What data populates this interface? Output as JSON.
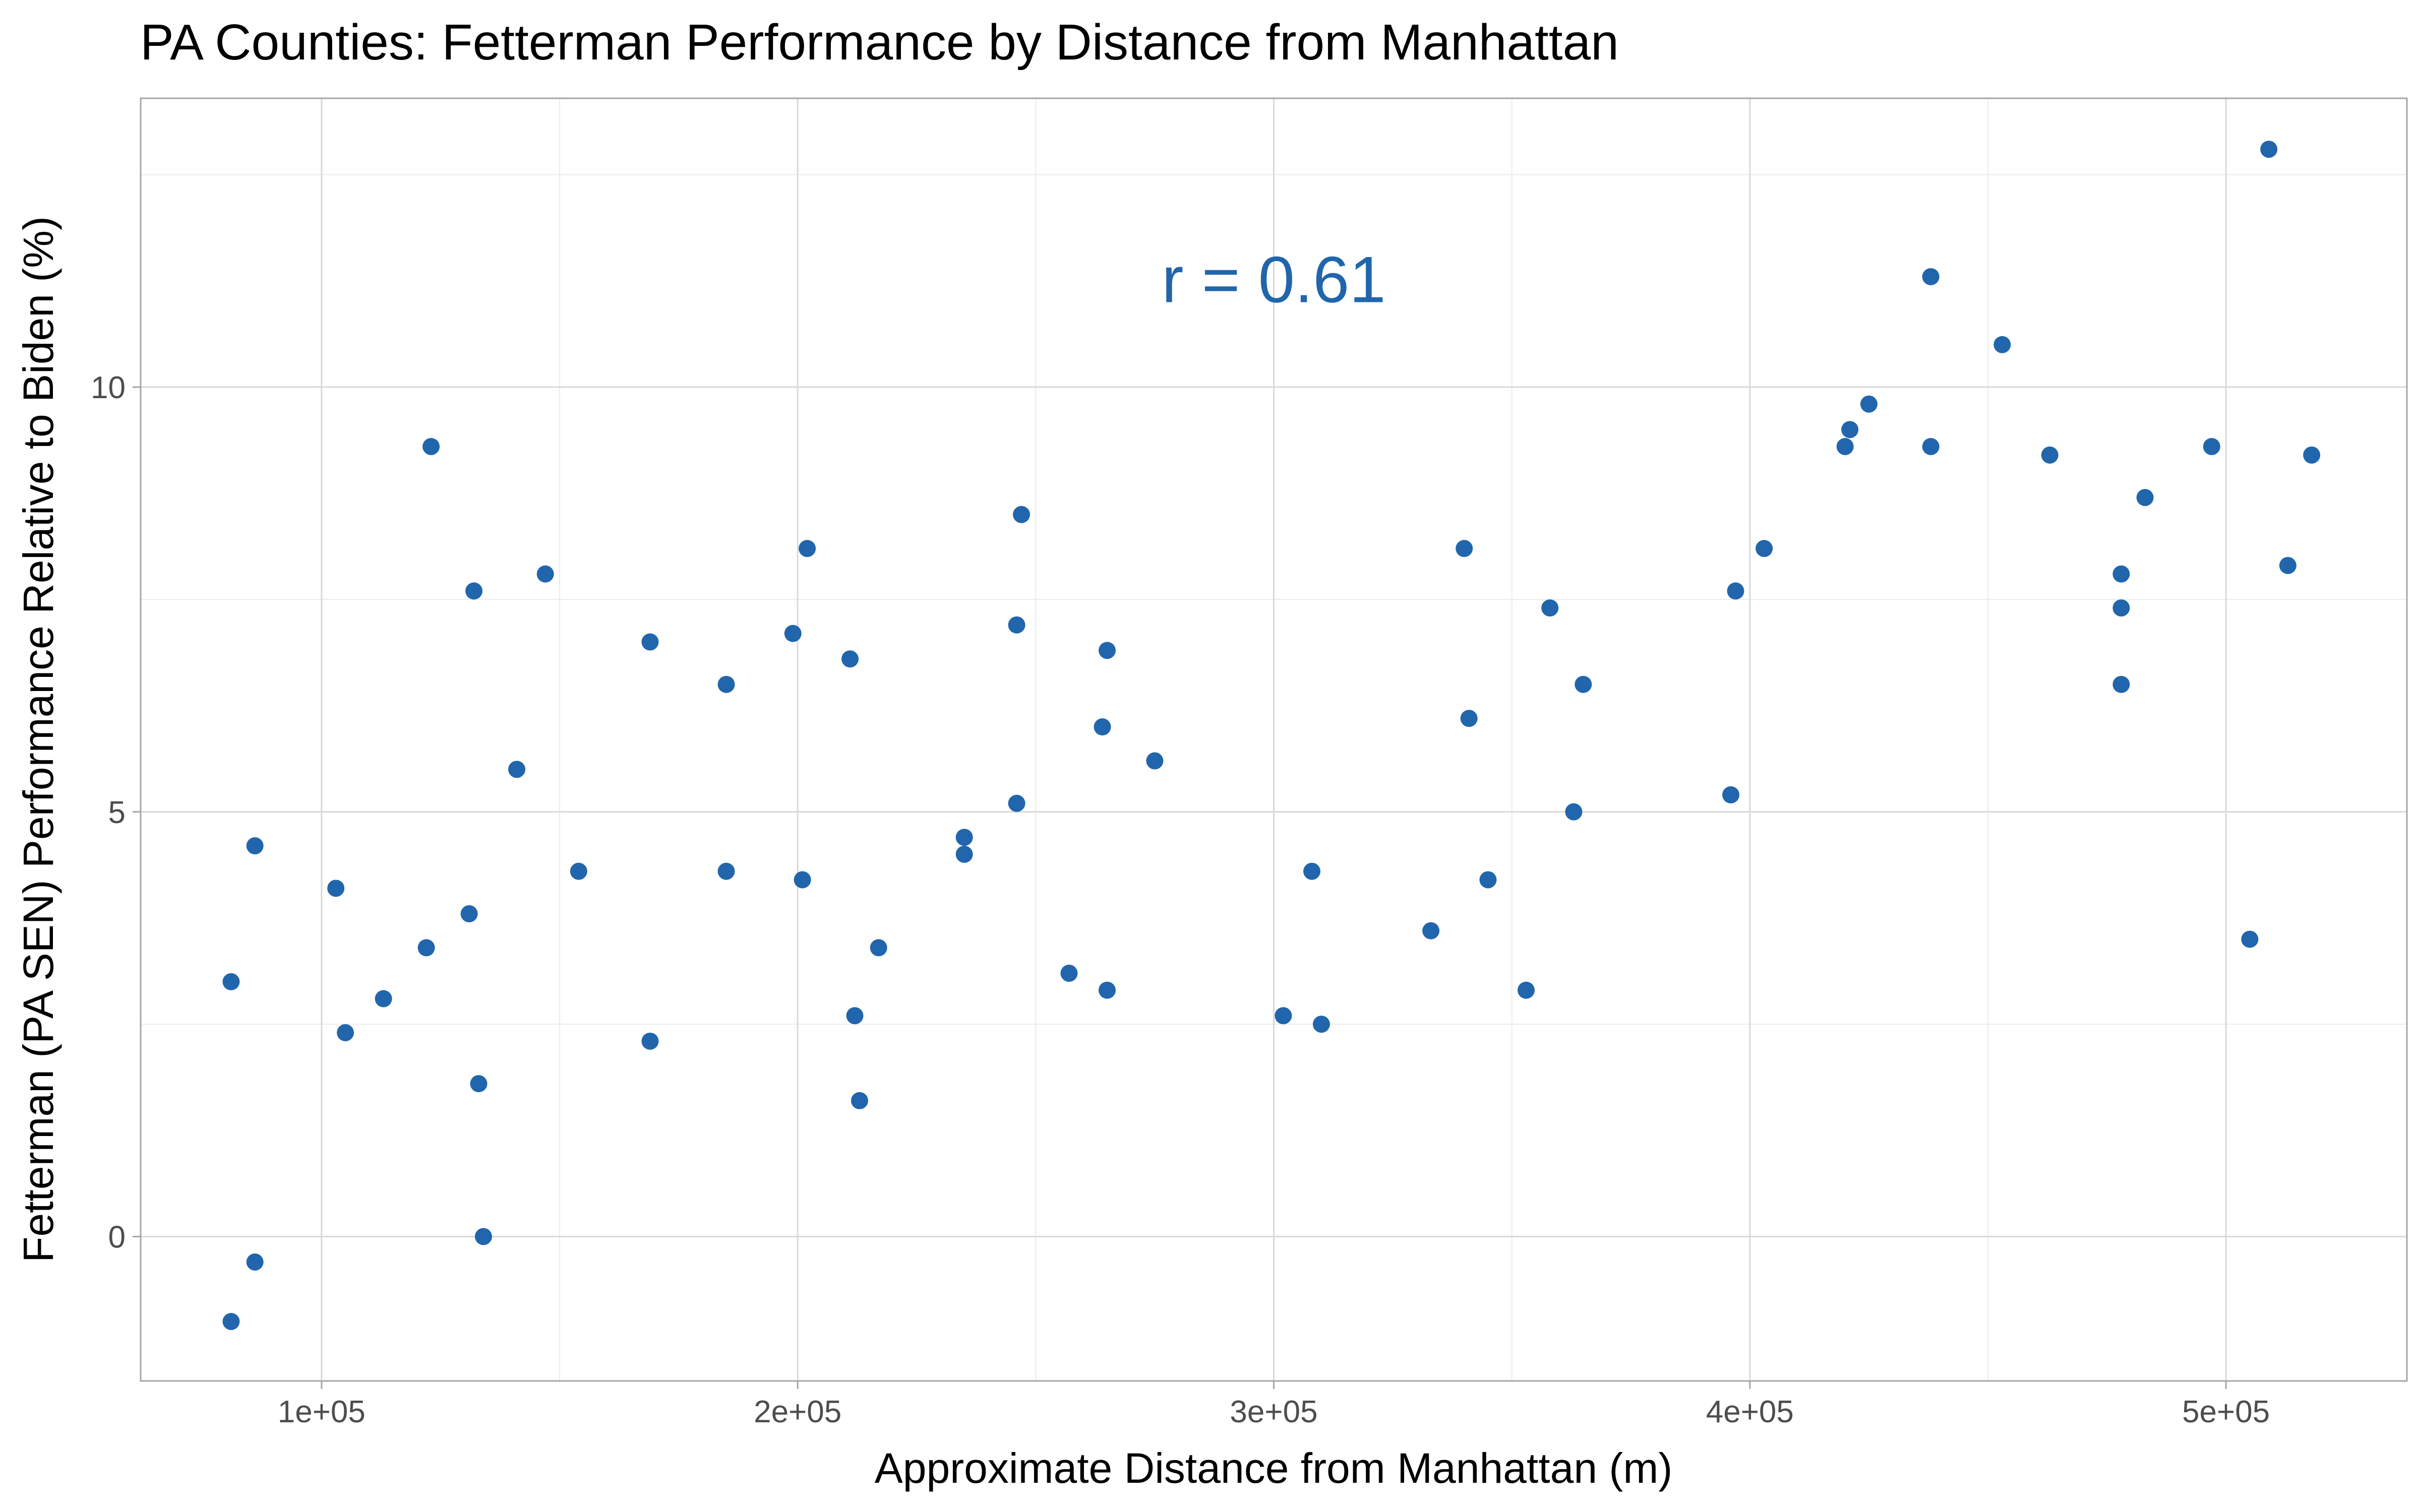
{
  "chart_data": {
    "type": "scatter",
    "title": "PA Counties: Fetterman Performance by Distance from Manhattan",
    "xlabel": "Approximate Distance from Manhattan (m)",
    "ylabel": "Fetterman (PA SEN) Performance Relative to Biden (%)",
    "annotation": "r = 0.61",
    "annotation_value": {
      "x": 300000,
      "y": 11
    },
    "xlim": [
      62000,
      538000
    ],
    "ylim": [
      -1.7,
      13.4
    ],
    "x_major_ticks": [
      100000,
      200000,
      300000,
      400000,
      500000
    ],
    "x_tick_labels": [
      "1e+05",
      "2e+05",
      "3e+05",
      "4e+05",
      "5e+05"
    ],
    "y_major_ticks": [
      0,
      5,
      10
    ],
    "y_tick_labels": [
      "0",
      "5",
      "10"
    ],
    "x_minor_ticks": [
      150000,
      250000,
      350000,
      450000
    ],
    "y_minor_ticks": [
      2.5,
      7.5,
      12.5
    ],
    "grid": true,
    "point_color": "#2166ac",
    "points": [
      {
        "x": 81000,
        "y": 3.0
      },
      {
        "x": 81000,
        "y": -1.0
      },
      {
        "x": 86000,
        "y": 4.6
      },
      {
        "x": 86000,
        "y": -0.3
      },
      {
        "x": 103000,
        "y": 4.1
      },
      {
        "x": 105000,
        "y": 2.4
      },
      {
        "x": 113000,
        "y": 2.8
      },
      {
        "x": 122000,
        "y": 3.4
      },
      {
        "x": 123000,
        "y": 9.3
      },
      {
        "x": 131000,
        "y": 3.8
      },
      {
        "x": 132000,
        "y": 7.6
      },
      {
        "x": 133000,
        "y": 1.8
      },
      {
        "x": 134000,
        "y": 0.0
      },
      {
        "x": 141000,
        "y": 5.5
      },
      {
        "x": 147000,
        "y": 7.8
      },
      {
        "x": 154000,
        "y": 4.3
      },
      {
        "x": 169000,
        "y": 7.0
      },
      {
        "x": 169000,
        "y": 2.3
      },
      {
        "x": 185000,
        "y": 6.5
      },
      {
        "x": 185000,
        "y": 4.3
      },
      {
        "x": 199000,
        "y": 7.1
      },
      {
        "x": 201000,
        "y": 4.2
      },
      {
        "x": 202000,
        "y": 8.1
      },
      {
        "x": 211000,
        "y": 6.8
      },
      {
        "x": 212000,
        "y": 2.6
      },
      {
        "x": 213000,
        "y": 1.6
      },
      {
        "x": 217000,
        "y": 3.4
      },
      {
        "x": 235000,
        "y": 4.7
      },
      {
        "x": 235000,
        "y": 4.5
      },
      {
        "x": 246000,
        "y": 5.1
      },
      {
        "x": 246000,
        "y": 7.2
      },
      {
        "x": 247000,
        "y": 8.5
      },
      {
        "x": 257000,
        "y": 3.1
      },
      {
        "x": 264000,
        "y": 6.0
      },
      {
        "x": 265000,
        "y": 6.9
      },
      {
        "x": 265000,
        "y": 2.9
      },
      {
        "x": 275000,
        "y": 5.6
      },
      {
        "x": 302000,
        "y": 2.6
      },
      {
        "x": 308000,
        "y": 4.3
      },
      {
        "x": 310000,
        "y": 2.5
      },
      {
        "x": 333000,
        "y": 3.6
      },
      {
        "x": 340000,
        "y": 8.1
      },
      {
        "x": 341000,
        "y": 6.1
      },
      {
        "x": 345000,
        "y": 4.2
      },
      {
        "x": 353000,
        "y": 2.9
      },
      {
        "x": 358000,
        "y": 7.4
      },
      {
        "x": 363000,
        "y": 5.0
      },
      {
        "x": 365000,
        "y": 6.5
      },
      {
        "x": 396000,
        "y": 5.2
      },
      {
        "x": 397000,
        "y": 7.6
      },
      {
        "x": 403000,
        "y": 8.1
      },
      {
        "x": 420000,
        "y": 9.3
      },
      {
        "x": 421000,
        "y": 9.5
      },
      {
        "x": 425000,
        "y": 9.8
      },
      {
        "x": 438000,
        "y": 11.3
      },
      {
        "x": 438000,
        "y": 9.3
      },
      {
        "x": 453000,
        "y": 10.5
      },
      {
        "x": 463000,
        "y": 9.2
      },
      {
        "x": 478000,
        "y": 7.8
      },
      {
        "x": 478000,
        "y": 7.4
      },
      {
        "x": 478000,
        "y": 6.5
      },
      {
        "x": 483000,
        "y": 8.7
      },
      {
        "x": 497000,
        "y": 9.3
      },
      {
        "x": 505000,
        "y": 3.5
      },
      {
        "x": 509000,
        "y": 12.8
      },
      {
        "x": 513000,
        "y": 7.9
      },
      {
        "x": 518000,
        "y": 9.2
      }
    ]
  }
}
